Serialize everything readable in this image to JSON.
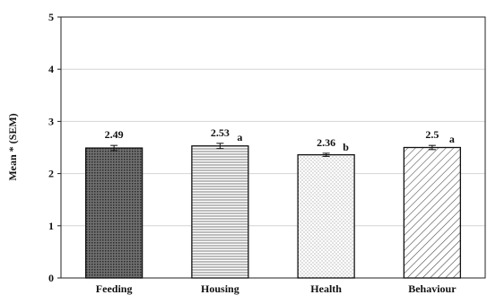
{
  "chart_data": {
    "type": "bar",
    "title": "",
    "xlabel": "",
    "ylabel": "Mean * (SEM)",
    "ylim": [
      0,
      5
    ],
    "yticks": [
      "0",
      "1",
      "2",
      "3",
      "4",
      "5"
    ],
    "grid": true,
    "categories": [
      "Feeding",
      "Housing",
      "Health",
      "Behaviour"
    ],
    "values": [
      2.49,
      2.53,
      2.36,
      2.5
    ],
    "value_labels": [
      "2.49",
      "2.53",
      "2.36",
      "2.5"
    ],
    "sem": [
      0.05,
      0.05,
      0.03,
      0.04
    ],
    "significance_letters": [
      "",
      "a",
      "b",
      "a"
    ],
    "bar_patterns": [
      "dense-dots",
      "horizontal-lines",
      "sparse-dots",
      "diagonal-lines"
    ]
  }
}
